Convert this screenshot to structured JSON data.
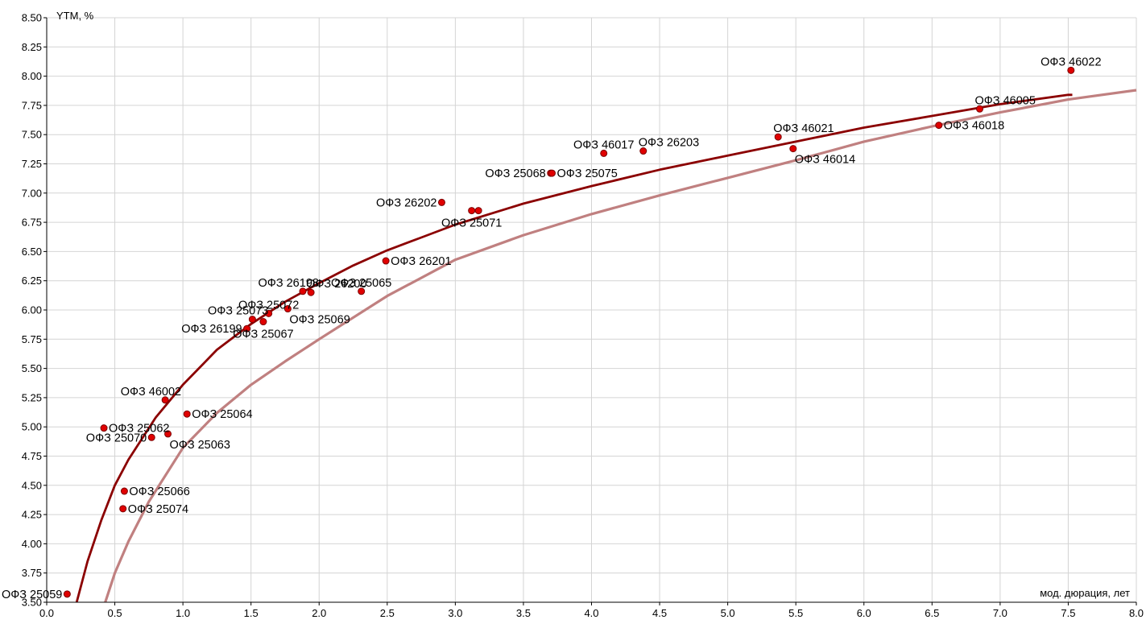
{
  "chart_data": {
    "type": "scatter",
    "ylabel": "YTM, %",
    "xlabel": "мод. дюрация, лет",
    "xlim": [
      0,
      8
    ],
    "ylim": [
      3.5,
      8.5
    ],
    "x_ticks": [
      "0.0",
      "0.5",
      "1.0",
      "1.5",
      "2.0",
      "2.5",
      "3.0",
      "3.5",
      "4.0",
      "4.5",
      "5.0",
      "5.5",
      "6.0",
      "6.5",
      "7.0",
      "7.5",
      "8.0"
    ],
    "y_ticks": [
      "3.50",
      "3.75",
      "4.00",
      "4.25",
      "4.50",
      "4.75",
      "5.00",
      "5.25",
      "5.50",
      "5.75",
      "6.00",
      "6.25",
      "6.50",
      "6.75",
      "7.00",
      "7.25",
      "7.50",
      "7.75",
      "8.00",
      "8.25",
      "8.50"
    ],
    "grid": true,
    "colors": {
      "points": "#e00000",
      "point_border": "#7a0000",
      "curve_current": "#8b0000",
      "curve_previous": "#c08080",
      "grid": "#d4d4d4"
    },
    "points": [
      {
        "label": "ОФЗ 25059",
        "x": 0.15,
        "y": 3.57,
        "label_pos": "left"
      },
      {
        "label": "ОФЗ 25062",
        "x": 0.42,
        "y": 4.99,
        "label_pos": "right"
      },
      {
        "label": "ОФЗ 25070",
        "x": 0.77,
        "y": 4.91,
        "label_pos": "left"
      },
      {
        "label": "ОФЗ 25063",
        "x": 0.89,
        "y": 4.94,
        "label_pos": "below-right"
      },
      {
        "label": "ОФЗ 46002",
        "x": 0.87,
        "y": 5.23,
        "label_pos": "above-left"
      },
      {
        "label": "ОФЗ 25064",
        "x": 1.03,
        "y": 5.11,
        "label_pos": "right"
      },
      {
        "label": "ОФЗ 25066",
        "x": 0.57,
        "y": 4.45,
        "label_pos": "right"
      },
      {
        "label": "ОФЗ 25074",
        "x": 0.56,
        "y": 4.3,
        "label_pos": "right"
      },
      {
        "label": "ОФЗ 26199",
        "x": 1.47,
        "y": 5.84,
        "label_pos": "left"
      },
      {
        "label": "ОФЗ 25073",
        "x": 1.51,
        "y": 5.92,
        "label_pos": "above-left"
      },
      {
        "label": "ОФЗ 25067",
        "x": 1.59,
        "y": 5.9,
        "label_pos": "below"
      },
      {
        "label": "ОФЗ 25072",
        "x": 1.63,
        "y": 5.97,
        "label_pos": "above"
      },
      {
        "label": "ОФЗ 25069",
        "x": 1.77,
        "y": 6.01,
        "label_pos": "below-right"
      },
      {
        "label": "ОФЗ 26198",
        "x": 1.88,
        "y": 6.16,
        "label_pos": "above-left"
      },
      {
        "label": "ОФЗ 26200",
        "x": 1.94,
        "y": 6.15,
        "label_pos": "above-right"
      },
      {
        "label": "ОФЗ 25065",
        "x": 2.31,
        "y": 6.16,
        "label_pos": "above"
      },
      {
        "label": "ОФЗ 26201",
        "x": 2.49,
        "y": 6.42,
        "label_pos": "right"
      },
      {
        "label": "ОФЗ 26202",
        "x": 2.9,
        "y": 6.92,
        "label_pos": "left"
      },
      {
        "label": "ОФЗ 25071",
        "x": 3.12,
        "y": 6.85,
        "label_pos": "below"
      },
      {
        "label": "",
        "x": 3.17,
        "y": 6.85,
        "label_pos": "none"
      },
      {
        "label": "ОФЗ 25068",
        "x": 3.7,
        "y": 7.17,
        "label_pos": "left"
      },
      {
        "label": "ОФЗ 25075",
        "x": 3.71,
        "y": 7.17,
        "label_pos": "right"
      },
      {
        "label": "ОФЗ 46017",
        "x": 4.09,
        "y": 7.34,
        "label_pos": "above"
      },
      {
        "label": "ОФЗ 26203",
        "x": 4.38,
        "y": 7.36,
        "label_pos": "above-right"
      },
      {
        "label": "ОФЗ 46021",
        "x": 5.37,
        "y": 7.48,
        "label_pos": "above-right"
      },
      {
        "label": "ОФЗ 46014",
        "x": 5.48,
        "y": 7.38,
        "label_pos": "below-right"
      },
      {
        "label": "ОФЗ 46018",
        "x": 6.55,
        "y": 7.58,
        "label_pos": "right"
      },
      {
        "label": "ОФЗ 46005",
        "x": 6.85,
        "y": 7.72,
        "label_pos": "above-right"
      },
      {
        "label": "ОФЗ 46022",
        "x": 7.52,
        "y": 8.05,
        "label_pos": "above"
      }
    ],
    "curves": [
      {
        "x": [
          0.22,
          0.3,
          0.4,
          0.5,
          0.6,
          0.8,
          1.0,
          1.25,
          1.5,
          1.75,
          2.0,
          2.25,
          2.5,
          2.75,
          3.0,
          3.5,
          4.0,
          4.5,
          5.0,
          5.5,
          6.0,
          6.5,
          7.0,
          7.5,
          7.53
        ],
        "y": [
          3.5,
          3.85,
          4.2,
          4.5,
          4.72,
          5.08,
          5.36,
          5.66,
          5.88,
          6.07,
          6.23,
          6.38,
          6.51,
          6.62,
          6.73,
          6.91,
          7.06,
          7.2,
          7.32,
          7.44,
          7.56,
          7.66,
          7.76,
          7.84,
          7.84
        ]
      },
      {
        "x": [
          0.43,
          0.5,
          0.6,
          0.75,
          1.0,
          1.25,
          1.5,
          1.75,
          2.0,
          2.5,
          3.0,
          3.5,
          4.0,
          4.5,
          5.0,
          5.5,
          6.0,
          6.5,
          7.0,
          7.5,
          8.0
        ],
        "y": [
          3.5,
          3.75,
          4.02,
          4.36,
          4.82,
          5.12,
          5.36,
          5.56,
          5.75,
          6.12,
          6.43,
          6.64,
          6.82,
          6.98,
          7.13,
          7.28,
          7.44,
          7.57,
          7.69,
          7.8,
          7.88
        ]
      }
    ]
  }
}
